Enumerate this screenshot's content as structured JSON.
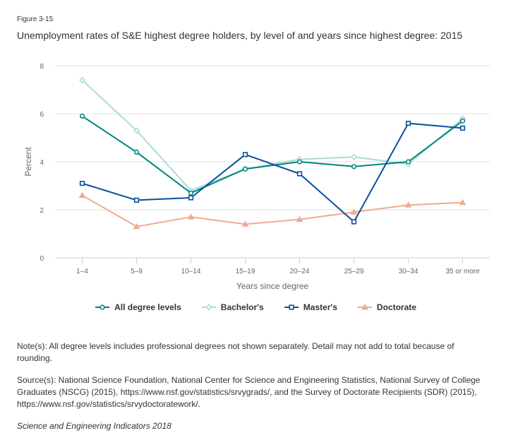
{
  "figure_label": "Figure 3-15",
  "title": "Unemployment rates of S&E highest degree holders, by level of and years since highest degree: 2015",
  "chart_data": {
    "type": "line",
    "title": "Unemployment rates of S&E highest degree holders, by level of and years since highest degree: 2015",
    "xlabel": "Years since degree",
    "ylabel": "Percent",
    "categories": [
      "1–4",
      "5–9",
      "10–14",
      "15–19",
      "20–24",
      "25–29",
      "30–34",
      "35 or more"
    ],
    "ylim": [
      0,
      8
    ],
    "yticks": [
      0,
      2,
      4,
      6,
      8
    ],
    "grid": true,
    "legend_position": "bottom",
    "series": [
      {
        "name": "All degree levels",
        "color": "#00847f",
        "marker": "circle",
        "values": [
          5.9,
          4.4,
          2.7,
          3.7,
          4.0,
          3.8,
          4.0,
          5.7
        ]
      },
      {
        "name": "Bachelor's",
        "color": "#a8dcd8",
        "marker": "diamond",
        "values": [
          7.4,
          5.3,
          2.8,
          3.7,
          4.1,
          4.2,
          3.9,
          5.8
        ]
      },
      {
        "name": "Master's",
        "color": "#0a4f9c",
        "marker": "square",
        "values": [
          3.1,
          2.4,
          2.5,
          4.3,
          3.5,
          1.5,
          5.6,
          5.4
        ]
      },
      {
        "name": "Doctorate",
        "color": "#efab91",
        "marker": "triangle",
        "values": [
          2.6,
          1.3,
          1.7,
          1.4,
          1.6,
          1.9,
          2.2,
          2.3
        ]
      }
    ]
  },
  "notes": {
    "note": "Note(s): All degree levels includes professional degrees not shown separately. Detail may not add to total because of rounding.",
    "source": "Source(s): National Science Foundation, National Center for Science and Engineering Statistics, National Survey of College Graduates (NSCG) (2015), https://www.nsf.gov/statistics/srvygrads/, and the Survey of Doctorate Recipients (SDR) (2015), https://www.nsf.gov/statistics/srvydoctoratework/.",
    "publication": "Science and Engineering Indicators 2018"
  }
}
